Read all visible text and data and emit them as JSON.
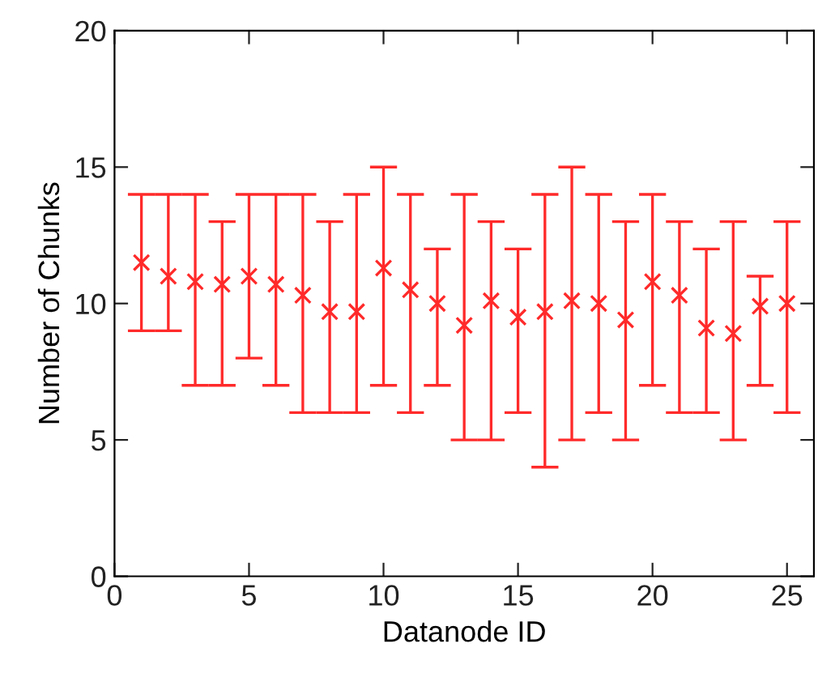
{
  "chart_data": {
    "type": "scatter",
    "xlabel": "Datanode ID",
    "ylabel": "Number of Chunks",
    "x": [
      1,
      2,
      3,
      4,
      5,
      6,
      7,
      8,
      9,
      10,
      11,
      12,
      13,
      14,
      15,
      16,
      17,
      18,
      19,
      20,
      21,
      22,
      23,
      24,
      25
    ],
    "series": [
      {
        "color": "#ff2a2a",
        "values": [
          11.5,
          11.0,
          10.8,
          10.7,
          11.0,
          10.7,
          10.3,
          9.7,
          9.7,
          11.3,
          10.5,
          10.0,
          9.2,
          10.1,
          9.5,
          9.7,
          10.1,
          10.0,
          9.4,
          10.8,
          10.3,
          9.1,
          8.9,
          9.9,
          10.0
        ],
        "errors": [
          [
            9,
            14
          ],
          [
            9,
            14
          ],
          [
            7,
            14
          ],
          [
            7,
            13
          ],
          [
            8,
            14
          ],
          [
            7,
            14
          ],
          [
            6,
            14
          ],
          [
            6,
            13
          ],
          [
            6,
            14
          ],
          [
            7,
            15
          ],
          [
            6,
            14
          ],
          [
            7,
            12
          ],
          [
            5,
            14
          ],
          [
            5,
            13
          ],
          [
            6,
            12
          ],
          [
            4,
            14
          ],
          [
            5,
            15
          ],
          [
            6,
            14
          ],
          [
            5,
            13
          ],
          [
            7,
            14
          ],
          [
            6,
            13
          ],
          [
            6,
            12
          ],
          [
            5,
            13
          ],
          [
            7,
            11
          ],
          [
            6,
            13
          ]
        ]
      }
    ],
    "xlim": [
      0,
      26
    ],
    "xticks": [
      0,
      5,
      10,
      15,
      20,
      25
    ],
    "ylim": [
      0,
      20
    ],
    "yticks": [
      0,
      5,
      10,
      15,
      20
    ],
    "marker": "cross",
    "grid": false,
    "legend": false
  }
}
